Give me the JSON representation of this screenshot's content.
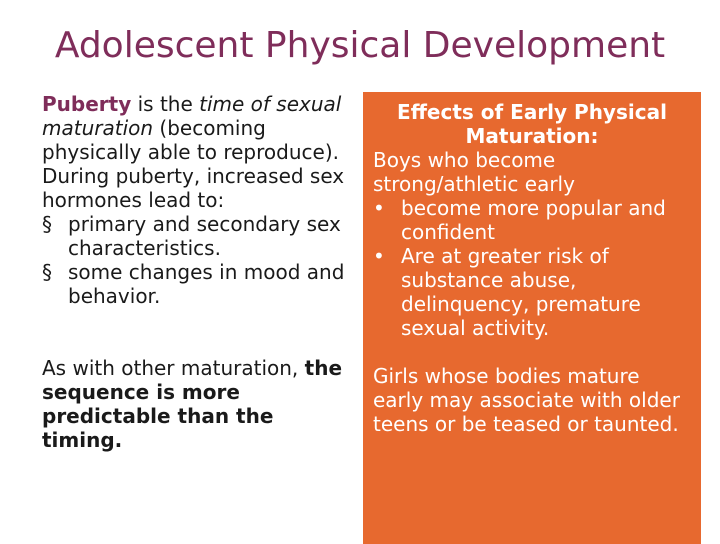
{
  "slide": {
    "title": "Adolescent Physical Development"
  },
  "left": {
    "term": "Puberty",
    "def_mid": " is the ",
    "def_italic": "time of sexual maturation",
    "def_tail": " (becoming physically able to reproduce).",
    "during": "During puberty, increased sex hormones lead to:",
    "bullet_marker": "§",
    "bullets": [
      "primary and secondary sex characteristics.",
      "some changes in mood and behavior."
    ],
    "closing_plain": "As with other maturation, ",
    "closing_bold": "the sequence is more predictable than the timing."
  },
  "box": {
    "heading": "Effects of Early Physical Maturation:",
    "boys_intro": "Boys who become strong/athletic early",
    "bullet_marker": "•",
    "boys_bullets": [
      "become more popular and confident",
      "Are at greater risk of substance abuse, delinquency, premature sexual activity."
    ],
    "girls": "Girls whose bodies mature early may associate with older teens or be teased or taunted."
  },
  "colors": {
    "title": "#7f2d5a",
    "accent": "#7f2d5a",
    "box_bg": "#e7692f",
    "box_text": "#ffffff"
  }
}
